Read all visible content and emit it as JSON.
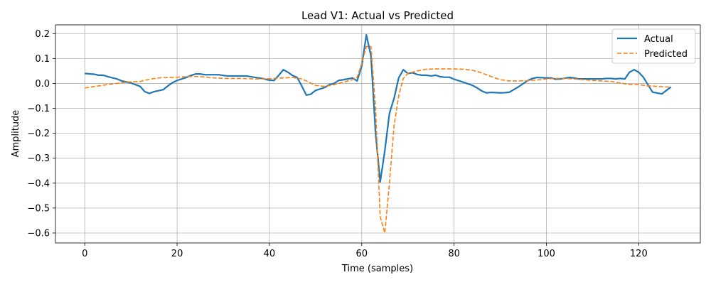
{
  "chart_data": {
    "type": "line",
    "title": "Lead V1: Actual vs Predicted",
    "xlabel": "Time (samples)",
    "ylabel": "Amplitude",
    "xlim": [
      -6.35,
      133.35
    ],
    "ylim": [
      -0.64,
      0.235
    ],
    "xticks": [
      0,
      20,
      40,
      60,
      80,
      100,
      120
    ],
    "yticks": [
      -0.6,
      -0.5,
      -0.4,
      -0.3,
      -0.2,
      -0.1,
      0.0,
      0.1,
      0.2
    ],
    "ytick_labels": [
      "−0.6",
      "−0.5",
      "−0.4",
      "−0.3",
      "−0.2",
      "−0.1",
      "0.0",
      "0.1",
      "0.2"
    ],
    "grid": true,
    "legend_position": "top-right",
    "series": [
      {
        "name": "Actual",
        "color": "#1f77b4",
        "style": "solid",
        "points": [
          [
            0,
            0.04
          ],
          [
            2,
            0.037
          ],
          [
            3,
            0.033
          ],
          [
            4,
            0.033
          ],
          [
            5,
            0.027
          ],
          [
            7,
            0.018
          ],
          [
            8,
            0.01
          ],
          [
            10,
            0.002
          ],
          [
            11,
            -0.005
          ],
          [
            12,
            -0.012
          ],
          [
            13,
            -0.033
          ],
          [
            14,
            -0.04
          ],
          [
            15,
            -0.033
          ],
          [
            17,
            -0.025
          ],
          [
            18,
            -0.01
          ],
          [
            19,
            0.003
          ],
          [
            20,
            0.012
          ],
          [
            22,
            0.024
          ],
          [
            23,
            0.032
          ],
          [
            24,
            0.038
          ],
          [
            25,
            0.038
          ],
          [
            26,
            0.035
          ],
          [
            28,
            0.035
          ],
          [
            29,
            0.035
          ],
          [
            30,
            0.032
          ],
          [
            31,
            0.03
          ],
          [
            33,
            0.03
          ],
          [
            35,
            0.03
          ],
          [
            37,
            0.024
          ],
          [
            39,
            0.018
          ],
          [
            40,
            0.013
          ],
          [
            41,
            0.012
          ],
          [
            42,
            0.032
          ],
          [
            43,
            0.055
          ],
          [
            44,
            0.045
          ],
          [
            45,
            0.032
          ],
          [
            46,
            0.024
          ],
          [
            47,
            -0.01
          ],
          [
            48,
            -0.047
          ],
          [
            49,
            -0.043
          ],
          [
            50,
            -0.028
          ],
          [
            52,
            -0.016
          ],
          [
            53,
            -0.005
          ],
          [
            54,
            0.0
          ],
          [
            55,
            0.012
          ],
          [
            57,
            0.018
          ],
          [
            58,
            0.022
          ],
          [
            59,
            0.01
          ],
          [
            60,
            0.07
          ],
          [
            61,
            0.195
          ],
          [
            62,
            0.11
          ],
          [
            63,
            -0.2
          ],
          [
            64,
            -0.395
          ],
          [
            65,
            -0.27
          ],
          [
            66,
            -0.12
          ],
          [
            67,
            -0.06
          ],
          [
            68,
            0.022
          ],
          [
            69,
            0.055
          ],
          [
            70,
            0.04
          ],
          [
            71,
            0.043
          ],
          [
            72,
            0.036
          ],
          [
            73,
            0.033
          ],
          [
            74,
            0.033
          ],
          [
            75,
            0.03
          ],
          [
            76,
            0.033
          ],
          [
            77,
            0.027
          ],
          [
            78,
            0.025
          ],
          [
            79,
            0.025
          ],
          [
            80,
            0.017
          ],
          [
            82,
            0.005
          ],
          [
            84,
            -0.008
          ],
          [
            85,
            -0.018
          ],
          [
            86,
            -0.03
          ],
          [
            87,
            -0.038
          ],
          [
            88,
            -0.036
          ],
          [
            90,
            -0.038
          ],
          [
            91,
            -0.037
          ],
          [
            92,
            -0.035
          ],
          [
            94,
            -0.013
          ],
          [
            96,
            0.012
          ],
          [
            97,
            0.02
          ],
          [
            98,
            0.024
          ],
          [
            100,
            0.022
          ],
          [
            101,
            0.022
          ],
          [
            102,
            0.017
          ],
          [
            103,
            0.018
          ],
          [
            105,
            0.024
          ],
          [
            106,
            0.022
          ],
          [
            107,
            0.018
          ],
          [
            110,
            0.018
          ],
          [
            112,
            0.018
          ],
          [
            113,
            0.02
          ],
          [
            114,
            0.02
          ],
          [
            115,
            0.018
          ],
          [
            116,
            0.02
          ],
          [
            117,
            0.018
          ],
          [
            118,
            0.045
          ],
          [
            119,
            0.055
          ],
          [
            120,
            0.045
          ],
          [
            121,
            0.025
          ],
          [
            123,
            -0.035
          ],
          [
            125,
            -0.042
          ],
          [
            127,
            -0.014
          ]
        ]
      },
      {
        "name": "Predicted",
        "color": "#ff7f0e",
        "style": "dashed",
        "points": [
          [
            0,
            -0.018
          ],
          [
            3,
            -0.01
          ],
          [
            6,
            -0.002
          ],
          [
            9,
            0.005
          ],
          [
            12,
            0.008
          ],
          [
            14,
            0.017
          ],
          [
            16,
            0.022
          ],
          [
            18,
            0.024
          ],
          [
            20,
            0.025
          ],
          [
            22,
            0.027
          ],
          [
            24,
            0.028
          ],
          [
            26,
            0.026
          ],
          [
            28,
            0.022
          ],
          [
            31,
            0.02
          ],
          [
            34,
            0.02
          ],
          [
            37,
            0.018
          ],
          [
            40,
            0.019
          ],
          [
            43,
            0.022
          ],
          [
            45,
            0.024
          ],
          [
            47,
            0.018
          ],
          [
            48,
            0.01
          ],
          [
            50,
            -0.008
          ],
          [
            52,
            -0.012
          ],
          [
            54,
            -0.005
          ],
          [
            56,
            0.005
          ],
          [
            58,
            0.015
          ],
          [
            59,
            0.025
          ],
          [
            60,
            0.08
          ],
          [
            61,
            0.148
          ],
          [
            62,
            0.148
          ],
          [
            63,
            -0.1
          ],
          [
            64,
            -0.535
          ],
          [
            65,
            -0.6
          ],
          [
            66,
            -0.4
          ],
          [
            67,
            -0.17
          ],
          [
            68,
            -0.05
          ],
          [
            69,
            0.02
          ],
          [
            70,
            0.04
          ],
          [
            72,
            0.05
          ],
          [
            74,
            0.057
          ],
          [
            76,
            0.058
          ],
          [
            78,
            0.058
          ],
          [
            80,
            0.058
          ],
          [
            82,
            0.057
          ],
          [
            84,
            0.053
          ],
          [
            86,
            0.042
          ],
          [
            88,
            0.028
          ],
          [
            90,
            0.015
          ],
          [
            92,
            0.01
          ],
          [
            94,
            0.01
          ],
          [
            96,
            0.011
          ],
          [
            98,
            0.014
          ],
          [
            100,
            0.018
          ],
          [
            102,
            0.02
          ],
          [
            104,
            0.02
          ],
          [
            106,
            0.018
          ],
          [
            108,
            0.015
          ],
          [
            110,
            0.012
          ],
          [
            112,
            0.01
          ],
          [
            114,
            0.008
          ],
          [
            116,
            0.002
          ],
          [
            118,
            -0.005
          ],
          [
            120,
            -0.005
          ],
          [
            122,
            -0.01
          ],
          [
            124,
            -0.012
          ],
          [
            127,
            -0.015
          ]
        ]
      }
    ]
  }
}
